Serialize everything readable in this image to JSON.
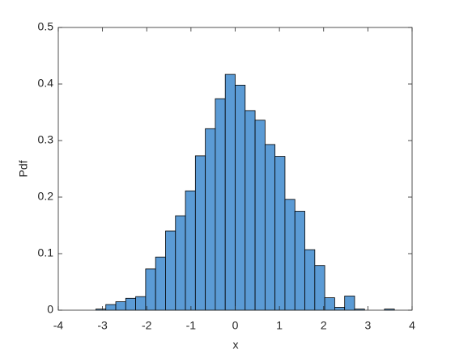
{
  "chart_data": {
    "type": "histogram",
    "xlabel": "x",
    "ylabel": "Pdf",
    "bins": [
      -3.15,
      -2.925,
      -2.7,
      -2.475,
      -2.25,
      -2.025,
      -1.8,
      -1.575,
      -1.35,
      -1.125,
      -0.9,
      -0.675,
      -0.45,
      -0.225,
      0,
      0.225,
      0.45,
      0.675,
      0.9,
      1.125,
      1.35,
      1.575,
      1.8,
      2.025,
      2.25,
      2.475,
      2.7,
      2.925,
      3.15,
      3.375,
      3.6
    ],
    "values": [
      0.002,
      0.01,
      0.015,
      0.021,
      0.024,
      0.073,
      0.094,
      0.14,
      0.167,
      0.211,
      0.273,
      0.321,
      0.374,
      0.417,
      0.398,
      0.353,
      0.336,
      0.293,
      0.272,
      0.196,
      0.175,
      0.107,
      0.079,
      0.022,
      0.005,
      0.025,
      0.002,
      0,
      0,
      0.002
    ],
    "color": "#5b9bd5",
    "xlim": [
      -4,
      4
    ],
    "xticks": [
      -4,
      -3,
      -2,
      -1,
      0,
      1,
      2,
      3,
      4
    ],
    "ylim": [
      0,
      0.5
    ],
    "yticks": [
      0,
      0.1,
      0.2,
      0.3,
      0.4,
      0.5
    ]
  }
}
